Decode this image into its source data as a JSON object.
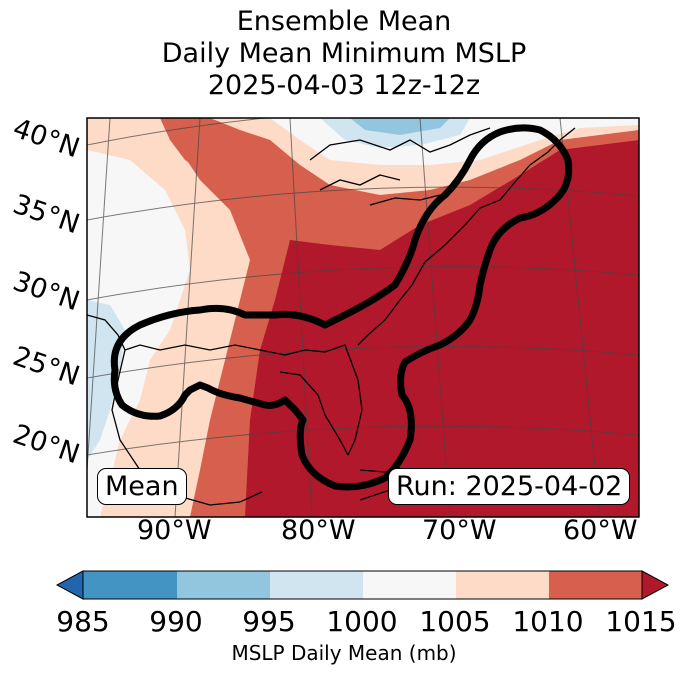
{
  "title": {
    "line1": "Ensemble Mean",
    "line2": "Daily Mean Minimum MSLP",
    "line3": "2025-04-03 12z-12z"
  },
  "map": {
    "lat_labels": [
      "40°N",
      "35°N",
      "30°N",
      "25°N",
      "20°N"
    ],
    "lon_labels": [
      "90°W",
      "80°W",
      "70°W",
      "60°W"
    ],
    "mean_label": "Mean",
    "run_label": "Run: 2025-04-02"
  },
  "colorbar": {
    "label": "MSLP Daily Mean (mb)",
    "ticks": [
      "985",
      "990",
      "995",
      "1000",
      "1005",
      "1010",
      "1015"
    ],
    "colors": {
      "under": "#2166ac",
      "c985_990": "#4393c3",
      "c990_995": "#92c5de",
      "c995_1000": "#d1e5f0",
      "c1000_1005": "#f7f7f7",
      "c1005_1010": "#fddbc7",
      "c1010_1015": "#d6604d",
      "over": "#b2182b"
    }
  }
}
